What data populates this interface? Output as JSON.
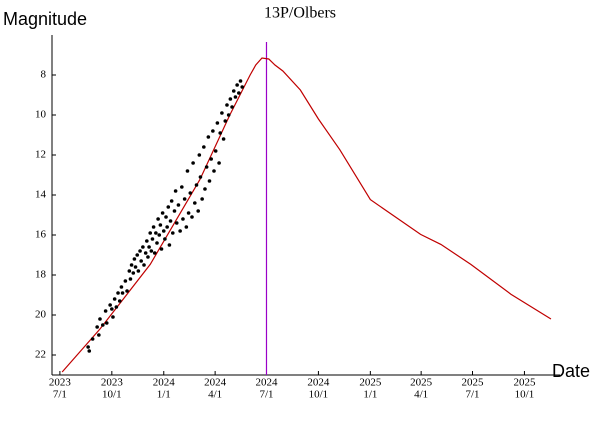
{
  "chart_data": {
    "type": "line",
    "title": "13P/Olbers",
    "ylabel": "Magnitude",
    "xlabel": "Date",
    "ylim": [
      23,
      6
    ],
    "yticks": [
      8,
      10,
      12,
      14,
      16,
      18,
      20,
      22
    ],
    "xlim": [
      "2023-06-17",
      "2025-12-03"
    ],
    "xticks": [
      {
        "value": "2023-07-01",
        "label": [
          "2023",
          "7/1"
        ]
      },
      {
        "value": "2023-10-01",
        "label": [
          "2023",
          "10/1"
        ]
      },
      {
        "value": "2024-01-01",
        "label": [
          "2024",
          "1/1"
        ]
      },
      {
        "value": "2024-04-01",
        "label": [
          "2024",
          "4/1"
        ]
      },
      {
        "value": "2024-07-01",
        "label": [
          "2024",
          "7/1"
        ]
      },
      {
        "value": "2024-10-01",
        "label": [
          "2024",
          "10/1"
        ]
      },
      {
        "value": "2025-01-01",
        "label": [
          "2025",
          "1/1"
        ]
      },
      {
        "value": "2025-04-01",
        "label": [
          "2025",
          "4/1"
        ]
      },
      {
        "value": "2025-07-01",
        "label": [
          "2025",
          "7/1"
        ]
      },
      {
        "value": "2025-10-01",
        "label": [
          "2025",
          "10/1"
        ]
      }
    ],
    "markers": [
      {
        "x": "2024-07-01",
        "color": "#9a00c8"
      }
    ],
    "series": [
      {
        "type": "line",
        "color": "#c00000",
        "x": [
          "2023-07-05",
          "2023-09-10",
          "2023-12-08",
          "2024-03-05",
          "2024-04-27",
          "2024-06-02",
          "2024-06-12",
          "2024-06-23",
          "2024-07-05",
          "2024-07-16",
          "2024-07-30",
          "2024-08-30",
          "2024-10-01",
          "2024-11-08",
          "2025-01-01",
          "2025-03-31",
          "2025-05-06",
          "2025-06-28",
          "2025-09-07",
          "2025-11-17"
        ],
        "values": [
          22.85,
          20.7,
          17.47,
          13.23,
          10.0,
          8.0,
          7.5,
          7.15,
          7.2,
          7.5,
          7.8,
          8.75,
          10.2,
          11.74,
          14.23,
          15.97,
          16.47,
          17.47,
          18.96,
          20.2
        ]
      },
      {
        "type": "scatter",
        "color": "#000000",
        "x": [
          "2023-08-20",
          "2023-08-22",
          "2023-08-28",
          "2023-09-05",
          "2023-09-08",
          "2023-09-10",
          "2023-09-15",
          "2023-09-20",
          "2023-09-22",
          "2023-09-28",
          "2023-10-01",
          "2023-10-03",
          "2023-10-06",
          "2023-10-09",
          "2023-10-12",
          "2023-10-15",
          "2023-10-18",
          "2023-10-20",
          "2023-10-25",
          "2023-10-28",
          "2023-11-01",
          "2023-11-03",
          "2023-11-05",
          "2023-11-08",
          "2023-11-10",
          "2023-11-12",
          "2023-11-15",
          "2023-11-17",
          "2023-11-20",
          "2023-11-22",
          "2023-11-25",
          "2023-11-27",
          "2023-11-30",
          "2023-12-02",
          "2023-12-04",
          "2023-12-06",
          "2023-12-08",
          "2023-12-10",
          "2023-12-12",
          "2023-12-14",
          "2023-12-16",
          "2023-12-18",
          "2023-12-20",
          "2023-12-22",
          "2023-12-24",
          "2023-12-26",
          "2023-12-28",
          "2023-12-30",
          "2024-01-01",
          "2024-01-03",
          "2024-01-05",
          "2024-01-07",
          "2024-01-09",
          "2024-01-11",
          "2024-01-13",
          "2024-01-15",
          "2024-01-17",
          "2024-01-20",
          "2024-01-22",
          "2024-01-24",
          "2024-01-27",
          "2024-01-30",
          "2024-02-02",
          "2024-02-04",
          "2024-02-07",
          "2024-02-10",
          "2024-02-12",
          "2024-02-14",
          "2024-02-17",
          "2024-02-20",
          "2024-02-22",
          "2024-02-25",
          "2024-02-28",
          "2024-03-02",
          "2024-03-04",
          "2024-03-06",
          "2024-03-09",
          "2024-03-12",
          "2024-03-14",
          "2024-03-17",
          "2024-03-20",
          "2024-03-22",
          "2024-03-25",
          "2024-03-28",
          "2024-03-30",
          "2024-04-02",
          "2024-04-05",
          "2024-04-08",
          "2024-04-10",
          "2024-04-13",
          "2024-04-16",
          "2024-04-19",
          "2024-04-22",
          "2024-04-25",
          "2024-04-28",
          "2024-05-01",
          "2024-05-04",
          "2024-05-07",
          "2024-05-10",
          "2024-05-13",
          "2024-05-16",
          "2024-05-19"
        ],
        "values": [
          21.6,
          21.8,
          21.2,
          20.6,
          21.0,
          20.2,
          20.5,
          19.8,
          20.4,
          19.5,
          19.7,
          20.1,
          19.2,
          19.6,
          18.9,
          19.3,
          18.6,
          18.9,
          18.3,
          18.8,
          17.8,
          18.2,
          17.5,
          17.9,
          17.2,
          17.6,
          17.0,
          17.8,
          16.8,
          17.3,
          16.6,
          17.5,
          16.9,
          16.3,
          17.1,
          16.6,
          15.9,
          16.8,
          16.2,
          15.6,
          16.9,
          15.9,
          16.4,
          15.2,
          16.0,
          15.5,
          16.7,
          14.9,
          15.8,
          16.2,
          15.1,
          15.6,
          14.6,
          16.5,
          15.3,
          14.3,
          15.9,
          14.8,
          13.8,
          15.4,
          14.5,
          15.8,
          13.6,
          15.2,
          14.2,
          15.6,
          12.8,
          14.9,
          13.9,
          15.1,
          12.4,
          14.4,
          13.5,
          14.8,
          12.0,
          13.1,
          14.2,
          11.6,
          13.7,
          12.6,
          11.1,
          13.3,
          12.2,
          10.8,
          12.8,
          11.8,
          10.4,
          12.4,
          10.9,
          9.9,
          11.2,
          10.3,
          9.5,
          10.0,
          9.2,
          9.6,
          8.8,
          9.1,
          8.5,
          8.9,
          8.3,
          8.6
        ]
      }
    ]
  }
}
